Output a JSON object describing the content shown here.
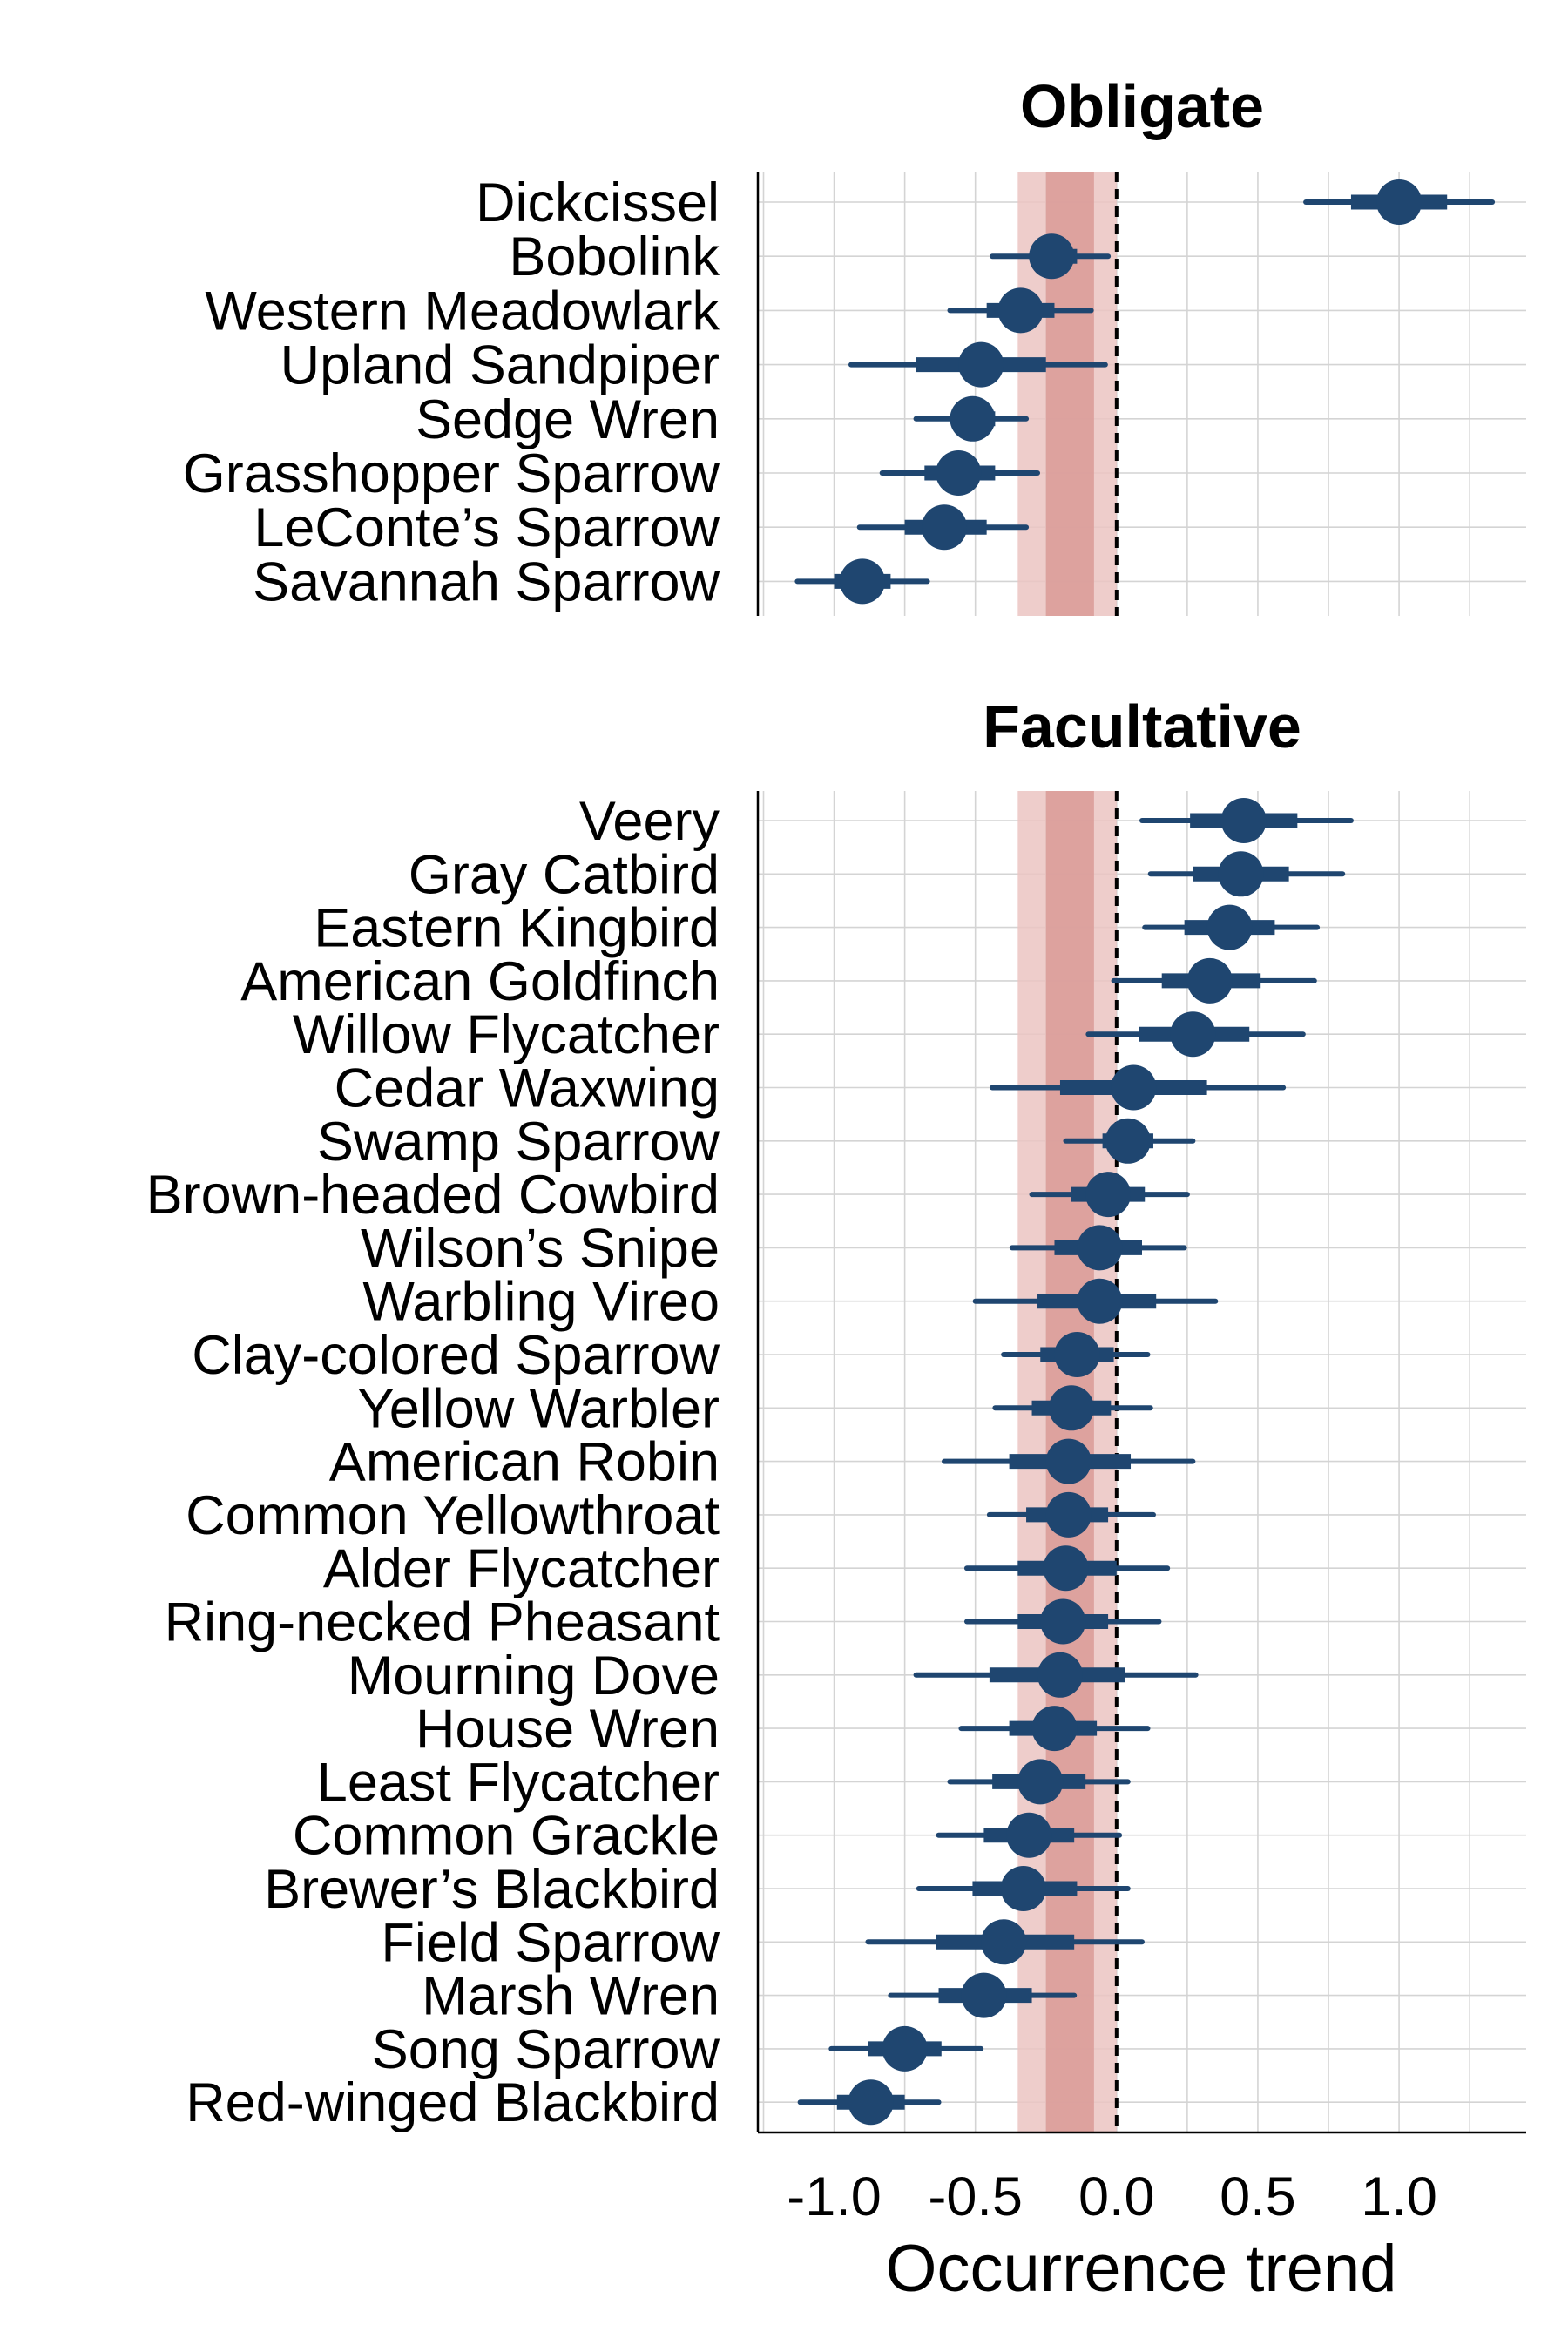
{
  "chart_data": {
    "type": "forest",
    "xlabel": "Occurrence trend",
    "xlim": [
      -1.27,
      1.45
    ],
    "xticks": [
      -1.0,
      -0.5,
      0.0,
      0.5,
      1.0
    ],
    "xtick_labels": [
      "-1.0",
      "-0.5",
      "0.0",
      "0.5",
      "1.0"
    ],
    "reference_line": 0.0,
    "band_outer": [
      -0.35,
      0.0
    ],
    "band_inner": [
      -0.25,
      -0.08
    ],
    "colors": {
      "point": "#1f4670",
      "band_outer": "#ebc4c2",
      "band_inner": "#d99a97",
      "grid": "#d4d4d4",
      "reference_line": "#000000"
    },
    "panels": [
      {
        "title": "Obligate",
        "species": [
          {
            "name": "Dickcissel",
            "mean": 1.0,
            "inner": [
              0.83,
              1.17
            ],
            "outer": [
              0.67,
              1.33
            ]
          },
          {
            "name": "Bobolink",
            "mean": -0.23,
            "inner": [
              -0.3,
              -0.14
            ],
            "outer": [
              -0.44,
              -0.03
            ]
          },
          {
            "name": "Western Meadowlark",
            "mean": -0.34,
            "inner": [
              -0.46,
              -0.22
            ],
            "outer": [
              -0.59,
              -0.09
            ]
          },
          {
            "name": "Upland Sandpiper",
            "mean": -0.48,
            "inner": [
              -0.71,
              -0.25
            ],
            "outer": [
              -0.94,
              -0.04
            ]
          },
          {
            "name": "Sedge Wren",
            "mean": -0.51,
            "inner": [
              -0.58,
              -0.43
            ],
            "outer": [
              -0.71,
              -0.32
            ]
          },
          {
            "name": "Grasshopper Sparrow",
            "mean": -0.56,
            "inner": [
              -0.68,
              -0.43
            ],
            "outer": [
              -0.83,
              -0.28
            ]
          },
          {
            "name": "LeConte’s Sparrow",
            "mean": -0.61,
            "inner": [
              -0.75,
              -0.46
            ],
            "outer": [
              -0.91,
              -0.32
            ]
          },
          {
            "name": "Savannah Sparrow",
            "mean": -0.9,
            "inner": [
              -1.0,
              -0.8
            ],
            "outer": [
              -1.13,
              -0.67
            ]
          }
        ]
      },
      {
        "title": "Facultative",
        "species": [
          {
            "name": "Veery",
            "mean": 0.45,
            "inner": [
              0.26,
              0.64
            ],
            "outer": [
              0.09,
              0.83
            ]
          },
          {
            "name": "Gray Catbird",
            "mean": 0.44,
            "inner": [
              0.27,
              0.61
            ],
            "outer": [
              0.12,
              0.8
            ]
          },
          {
            "name": "Eastern Kingbird",
            "mean": 0.4,
            "inner": [
              0.24,
              0.56
            ],
            "outer": [
              0.1,
              0.71
            ]
          },
          {
            "name": "American Goldfinch",
            "mean": 0.33,
            "inner": [
              0.16,
              0.51
            ],
            "outer": [
              -0.01,
              0.7
            ]
          },
          {
            "name": "Willow Flycatcher",
            "mean": 0.27,
            "inner": [
              0.08,
              0.47
            ],
            "outer": [
              -0.1,
              0.66
            ]
          },
          {
            "name": "Cedar Waxwing",
            "mean": 0.06,
            "inner": [
              -0.2,
              0.32
            ],
            "outer": [
              -0.44,
              0.59
            ]
          },
          {
            "name": "Swamp Sparrow",
            "mean": 0.04,
            "inner": [
              -0.05,
              0.13
            ],
            "outer": [
              -0.18,
              0.27
            ]
          },
          {
            "name": "Brown-headed Cowbird",
            "mean": -0.03,
            "inner": [
              -0.16,
              0.1
            ],
            "outer": [
              -0.3,
              0.25
            ]
          },
          {
            "name": "Wilson’s Snipe",
            "mean": -0.06,
            "inner": [
              -0.22,
              0.09
            ],
            "outer": [
              -0.37,
              0.24
            ]
          },
          {
            "name": "Warbling Vireo",
            "mean": -0.06,
            "inner": [
              -0.28,
              0.14
            ],
            "outer": [
              -0.5,
              0.35
            ]
          },
          {
            "name": "Clay-colored Sparrow",
            "mean": -0.14,
            "inner": [
              -0.27,
              -0.01
            ],
            "outer": [
              -0.4,
              0.11
            ]
          },
          {
            "name": "Yellow Warbler",
            "mean": -0.16,
            "inner": [
              -0.3,
              -0.02
            ],
            "outer": [
              -0.43,
              0.12
            ]
          },
          {
            "name": "American Robin",
            "mean": -0.17,
            "inner": [
              -0.38,
              0.05
            ],
            "outer": [
              -0.61,
              0.27
            ]
          },
          {
            "name": "Common Yellowthroat",
            "mean": -0.17,
            "inner": [
              -0.32,
              -0.03
            ],
            "outer": [
              -0.45,
              0.13
            ]
          },
          {
            "name": "Alder Flycatcher",
            "mean": -0.18,
            "inner": [
              -0.35,
              0.0
            ],
            "outer": [
              -0.53,
              0.18
            ]
          },
          {
            "name": "Ring-necked Pheasant",
            "mean": -0.19,
            "inner": [
              -0.35,
              -0.03
            ],
            "outer": [
              -0.53,
              0.15
            ]
          },
          {
            "name": "Mourning Dove",
            "mean": -0.2,
            "inner": [
              -0.45,
              0.03
            ],
            "outer": [
              -0.71,
              0.28
            ]
          },
          {
            "name": "House Wren",
            "mean": -0.22,
            "inner": [
              -0.38,
              -0.07
            ],
            "outer": [
              -0.55,
              0.11
            ]
          },
          {
            "name": "Least Flycatcher",
            "mean": -0.27,
            "inner": [
              -0.44,
              -0.11
            ],
            "outer": [
              -0.59,
              0.04
            ]
          },
          {
            "name": "Common Grackle",
            "mean": -0.31,
            "inner": [
              -0.47,
              -0.15
            ],
            "outer": [
              -0.63,
              0.01
            ]
          },
          {
            "name": "Brewer’s Blackbird",
            "mean": -0.33,
            "inner": [
              -0.51,
              -0.14
            ],
            "outer": [
              -0.7,
              0.04
            ]
          },
          {
            "name": "Field Sparrow",
            "mean": -0.4,
            "inner": [
              -0.64,
              -0.15
            ],
            "outer": [
              -0.88,
              0.09
            ]
          },
          {
            "name": "Marsh Wren",
            "mean": -0.47,
            "inner": [
              -0.63,
              -0.3
            ],
            "outer": [
              -0.8,
              -0.15
            ]
          },
          {
            "name": "Song Sparrow",
            "mean": -0.75,
            "inner": [
              -0.88,
              -0.62
            ],
            "outer": [
              -1.01,
              -0.48
            ]
          },
          {
            "name": "Red-winged Blackbird",
            "mean": -0.87,
            "inner": [
              -0.99,
              -0.75
            ],
            "outer": [
              -1.12,
              -0.63
            ]
          }
        ]
      }
    ]
  }
}
